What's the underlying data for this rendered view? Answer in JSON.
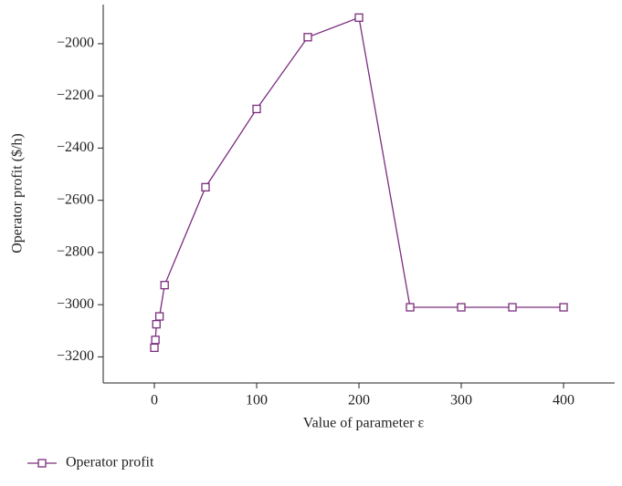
{
  "chart_data": {
    "type": "line",
    "x_label": "Value of parameter ε",
    "y_label": "Operator profit ($/h)",
    "x": [
      0,
      1,
      2,
      5,
      10,
      50,
      100,
      150,
      200,
      250,
      300,
      350,
      400
    ],
    "series": [
      {
        "name": "Operator profit",
        "color": "#7b2d7e",
        "values": [
          -3165,
          -3135,
          -3075,
          -3045,
          -2925,
          -2550,
          -2250,
          -1975,
          -1900,
          -3010,
          -3010,
          -3010,
          -3010
        ]
      }
    ],
    "xlim": [
      -50,
      450
    ],
    "xticks": [
      0,
      100,
      200,
      300,
      400
    ],
    "ylim": [
      -3300,
      -1850
    ],
    "yticks": [
      {
        "value": -3200,
        "label": "−3200"
      },
      {
        "value": -3000,
        "label": "−3000"
      },
      {
        "value": -2800,
        "label": "−2800"
      },
      {
        "value": -2600,
        "label": "−2600"
      },
      {
        "value": -2400,
        "label": "−2400"
      },
      {
        "value": -2200,
        "label": "−2200"
      },
      {
        "value": -2000,
        "label": "−2000"
      }
    ],
    "grid": false,
    "legend": "bottom-left"
  }
}
